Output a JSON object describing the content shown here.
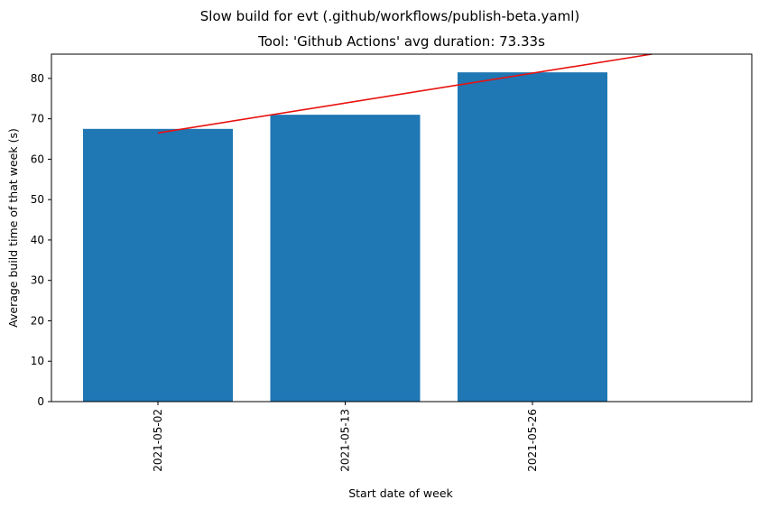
{
  "chart_data": {
    "type": "bar",
    "title": "Slow build for evt (.github/workflows/publish-beta.yaml)",
    "subtitle": "Tool: 'Github Actions' avg duration: 73.33s",
    "xlabel": "Start date of week",
    "ylabel": "Average build time of that week (s)",
    "categories": [
      "2021-05-02",
      "2021-05-13",
      "2021-05-26"
    ],
    "values": [
      67.5,
      71.0,
      81.5
    ],
    "ylim": [
      0,
      86
    ],
    "yticks": [
      0,
      10,
      20,
      30,
      40,
      50,
      60,
      70,
      80
    ],
    "trend_line": {
      "x": [
        "2021-05-02",
        "2021-05-31"
      ],
      "y": [
        66.5,
        86
      ]
    },
    "bar_color": "#1f77b4",
    "trend_color": "#e8110f",
    "grid": false,
    "legend": "none"
  }
}
